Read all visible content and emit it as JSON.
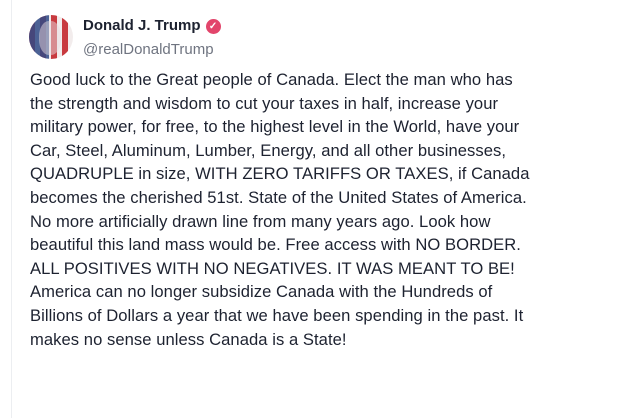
{
  "post": {
    "author_name": "Donald J. Trump",
    "verified_icon": "check-badge-icon",
    "badge_color": "#e2456b",
    "handle": "@realDonaldTrump",
    "text": "Good luck to the Great people of Canada. Elect the man who has\nthe strength and wisdom to cut your taxes in half, increase your\nmilitary power, for free, to the highest level in the World, have your\nCar, Steel, Aluminum, Lumber, Energy, and all other businesses,\nQUADRUPLE in size, WITH ZERO TARIFFS OR TAXES, if Canada\nbecomes the cherished 51st. State of the United States of America.\nNo more artificially drawn line from many years ago. Look how\nbeautiful this land mass would be. Free access with NO BORDER.\nALL POSITIVES WITH NO NEGATIVES. IT WAS MEANT TO BE!\nAmerica can no longer subsidize Canada with the Hundreds of\nBillions of Dollars a year that we have been spending in the past. It\nmakes no sense unless Canada is a State!"
  }
}
